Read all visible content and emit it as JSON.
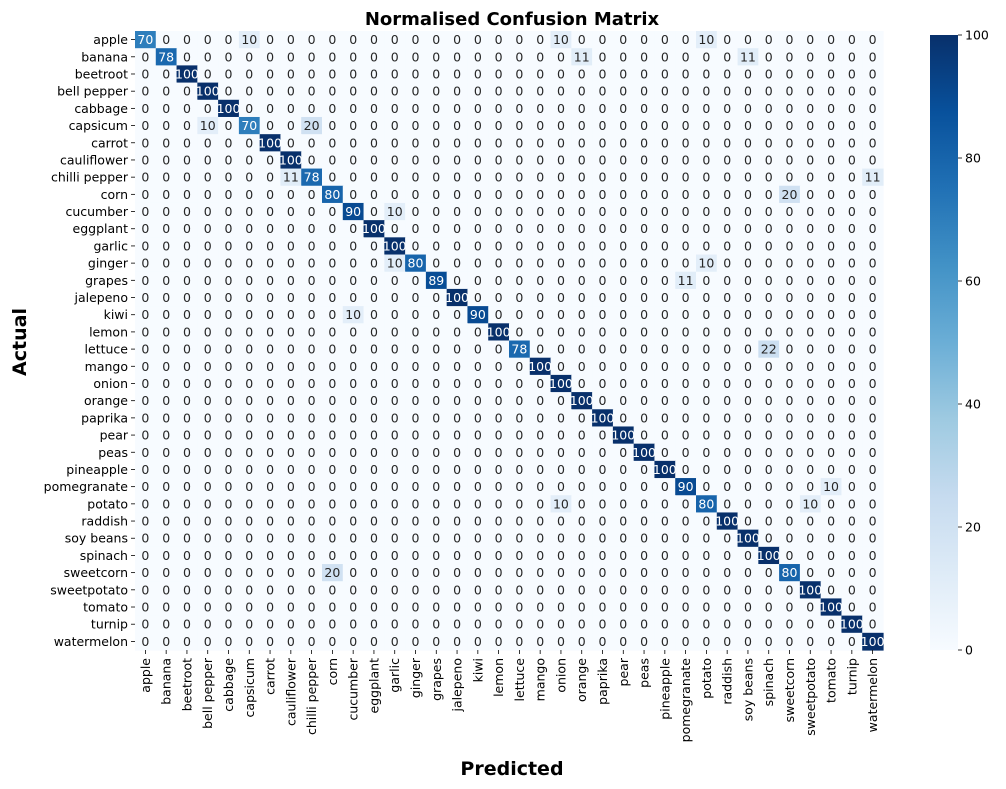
{
  "chart_data": {
    "type": "heatmap",
    "title": "Normalised Confusion Matrix",
    "xlabel": "Predicted",
    "ylabel": "Actual",
    "labels": [
      "apple",
      "banana",
      "beetroot",
      "bell pepper",
      "cabbage",
      "capsicum",
      "carrot",
      "cauliflower",
      "chilli pepper",
      "corn",
      "cucumber",
      "eggplant",
      "garlic",
      "ginger",
      "grapes",
      "jalepeno",
      "kiwi",
      "lemon",
      "lettuce",
      "mango",
      "onion",
      "orange",
      "paprika",
      "pear",
      "peas",
      "pineapple",
      "pomegranate",
      "potato",
      "raddish",
      "soy beans",
      "spinach",
      "sweetcorn",
      "sweetpotato",
      "tomato",
      "turnip",
      "watermelon"
    ],
    "off_diagonal": [
      {
        "row": 0,
        "col": 5,
        "value": 10
      },
      {
        "row": 0,
        "col": 20,
        "value": 10
      },
      {
        "row": 0,
        "col": 27,
        "value": 10
      },
      {
        "row": 1,
        "col": 21,
        "value": 11
      },
      {
        "row": 1,
        "col": 29,
        "value": 11
      },
      {
        "row": 5,
        "col": 3,
        "value": 10
      },
      {
        "row": 5,
        "col": 8,
        "value": 20
      },
      {
        "row": 8,
        "col": 7,
        "value": 11
      },
      {
        "row": 8,
        "col": 35,
        "value": 11
      },
      {
        "row": 9,
        "col": 31,
        "value": 20
      },
      {
        "row": 10,
        "col": 12,
        "value": 10
      },
      {
        "row": 13,
        "col": 12,
        "value": 10
      },
      {
        "row": 13,
        "col": 27,
        "value": 10
      },
      {
        "row": 14,
        "col": 26,
        "value": 11
      },
      {
        "row": 16,
        "col": 10,
        "value": 10
      },
      {
        "row": 18,
        "col": 30,
        "value": 22
      },
      {
        "row": 26,
        "col": 33,
        "value": 10
      },
      {
        "row": 27,
        "col": 20,
        "value": 10
      },
      {
        "row": 27,
        "col": 32,
        "value": 10
      },
      {
        "row": 31,
        "col": 9,
        "value": 20
      }
    ],
    "diagonal": [
      70,
      78,
      100,
      100,
      100,
      70,
      100,
      100,
      78,
      80,
      90,
      100,
      100,
      80,
      89,
      100,
      90,
      100,
      78,
      100,
      100,
      100,
      100,
      100,
      100,
      100,
      90,
      80,
      100,
      100,
      100,
      80,
      100,
      100,
      100,
      100
    ],
    "colorbar": {
      "min": 0,
      "max": 100,
      "ticks": [
        0,
        20,
        40,
        60,
        80,
        100
      ],
      "colormap": "Blues"
    }
  }
}
